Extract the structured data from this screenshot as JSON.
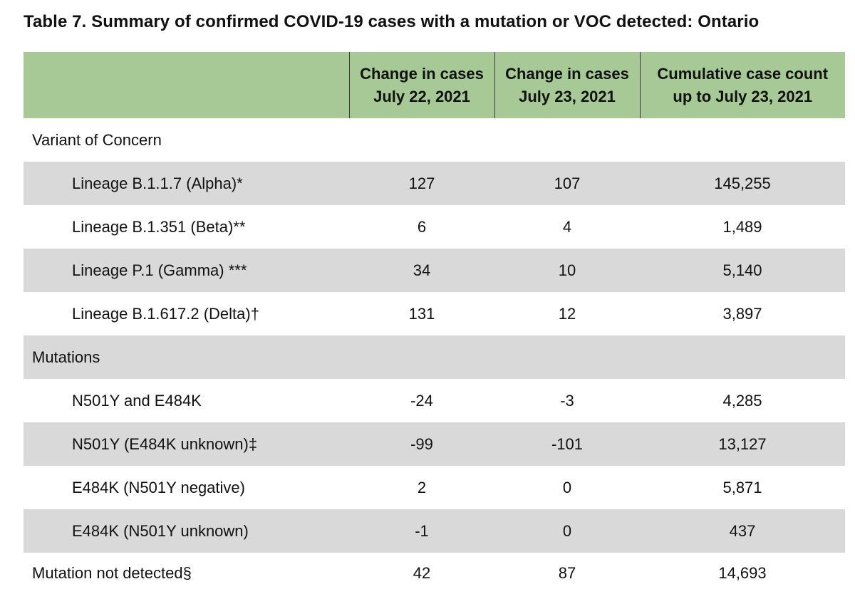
{
  "title": "Table 7. Summary of confirmed COVID-19 cases with a mutation or VOC detected: Ontario",
  "table": {
    "headers": [
      {
        "line1": "",
        "line2": ""
      },
      {
        "line1": "Change in cases",
        "line2": "July 22, 2021"
      },
      {
        "line1": "Change in cases",
        "line2": "July 23, 2021"
      },
      {
        "line1": "Cumulative case count",
        "line2": "up to July 23, 2021"
      }
    ],
    "rows": [
      {
        "label": "Variant of Concern",
        "values": [
          "",
          "",
          ""
        ]
      },
      {
        "label": "Lineage B.1.1.7 (Alpha)*",
        "values": [
          "127",
          "107",
          "145,255"
        ]
      },
      {
        "label": "Lineage B.1.351 (Beta)**",
        "values": [
          "6",
          "4",
          "1,489"
        ]
      },
      {
        "label": "Lineage P.1 (Gamma) ***",
        "values": [
          "34",
          "10",
          "5,140"
        ]
      },
      {
        "label": "Lineage B.1.617.2 (Delta)†",
        "values": [
          "131",
          "12",
          "3,897"
        ]
      },
      {
        "label": "Mutations",
        "values": [
          "",
          "",
          ""
        ]
      },
      {
        "label": "N501Y and E484K",
        "values": [
          "-24",
          "-3",
          "4,285"
        ]
      },
      {
        "label": "N501Y (E484K unknown)‡",
        "values": [
          "-99",
          "-101",
          "13,127"
        ]
      },
      {
        "label": "E484K (N501Y negative)",
        "values": [
          "2",
          "0",
          "5,871"
        ]
      },
      {
        "label": "E484K (N501Y unknown)",
        "values": [
          "-1",
          "0",
          "437"
        ]
      },
      {
        "label": "Mutation not detected§",
        "values": [
          "42",
          "87",
          "14,693"
        ]
      }
    ]
  },
  "colors": {
    "header_background": "#a6c995",
    "row_shading": "#d9d9d9"
  }
}
